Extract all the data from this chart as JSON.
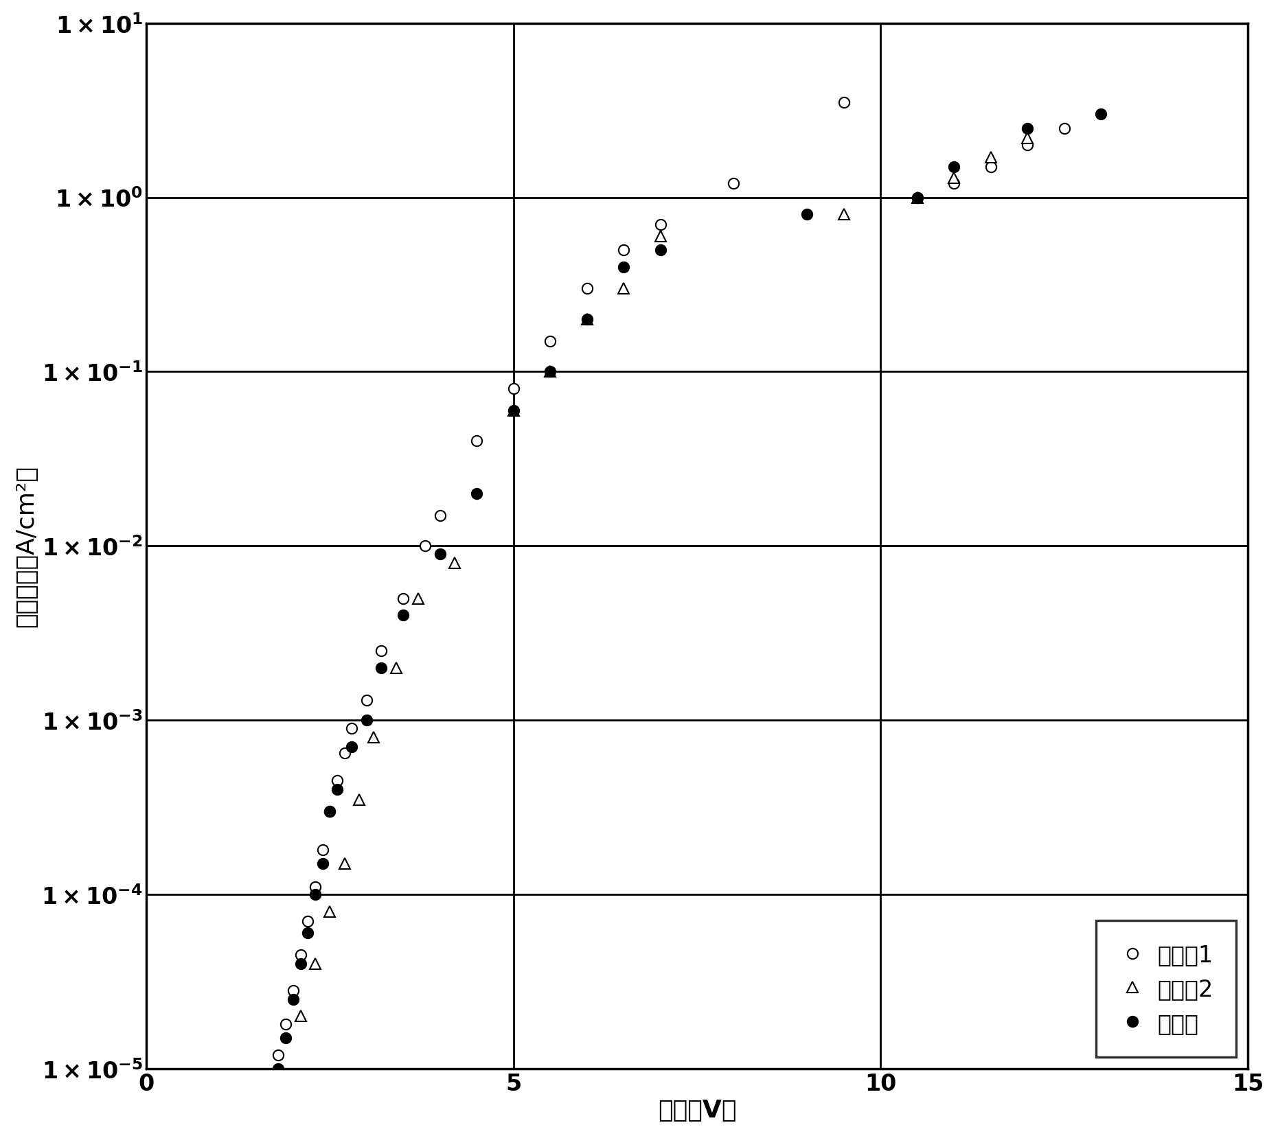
{
  "title": "",
  "xlabel": "电压（V）",
  "ylabel": "电流密度（A/cm²）",
  "xlim": [
    0,
    15
  ],
  "ylim_log": [
    1e-05,
    10
  ],
  "xticks": [
    0,
    5,
    10,
    15
  ],
  "legend_labels": [
    "实施例1",
    "实施例2",
    "比较例"
  ],
  "series1_x": [
    1.8,
    1.9,
    2.0,
    2.1,
    2.2,
    2.3,
    2.4,
    2.5,
    2.6,
    2.7,
    2.8,
    3.0,
    3.2,
    3.5,
    3.8,
    4.0,
    4.5,
    5.0,
    5.5,
    6.0,
    6.5,
    7.0,
    8.0,
    9.5,
    10.5,
    11.0,
    11.5,
    12.0,
    12.5
  ],
  "series1_y": [
    1.2e-05,
    1.8e-05,
    2.8e-05,
    4.5e-05,
    7e-05,
    0.00011,
    0.00018,
    0.0003,
    0.00045,
    0.00065,
    0.0009,
    0.0013,
    0.0025,
    0.005,
    0.01,
    0.015,
    0.04,
    0.08,
    0.15,
    0.3,
    0.5,
    0.7,
    1.2,
    3.5,
    1.0,
    1.2,
    1.5,
    2.0,
    2.5
  ],
  "series2_x": [
    2.1,
    2.3,
    2.5,
    2.7,
    2.9,
    3.1,
    3.4,
    3.7,
    4.2,
    5.0,
    5.5,
    6.0,
    6.5,
    7.0,
    9.5,
    10.5,
    11.0,
    11.5,
    12.0
  ],
  "series2_y": [
    2e-05,
    4e-05,
    8e-05,
    0.00015,
    0.00035,
    0.0008,
    0.002,
    0.005,
    0.008,
    0.06,
    0.1,
    0.2,
    0.3,
    0.6,
    0.8,
    1.0,
    1.3,
    1.7,
    2.2
  ],
  "series3_x": [
    1.8,
    1.9,
    2.0,
    2.1,
    2.2,
    2.3,
    2.4,
    2.5,
    2.6,
    2.8,
    3.0,
    3.2,
    3.5,
    4.0,
    4.5,
    5.0,
    5.5,
    6.0,
    6.5,
    7.0,
    9.0,
    10.5,
    11.0,
    12.0,
    13.0
  ],
  "series3_y": [
    1e-05,
    1.5e-05,
    2.5e-05,
    4e-05,
    6e-05,
    0.0001,
    0.00015,
    0.0003,
    0.0004,
    0.0007,
    0.001,
    0.002,
    0.004,
    0.009,
    0.02,
    0.06,
    0.1,
    0.2,
    0.4,
    0.5,
    0.8,
    1.0,
    1.5,
    2.5,
    3.0
  ],
  "marker_size": 11,
  "font_size_label": 26,
  "font_size_tick": 24,
  "font_size_legend": 24,
  "background_color": "#ffffff",
  "grid_color": "#000000"
}
